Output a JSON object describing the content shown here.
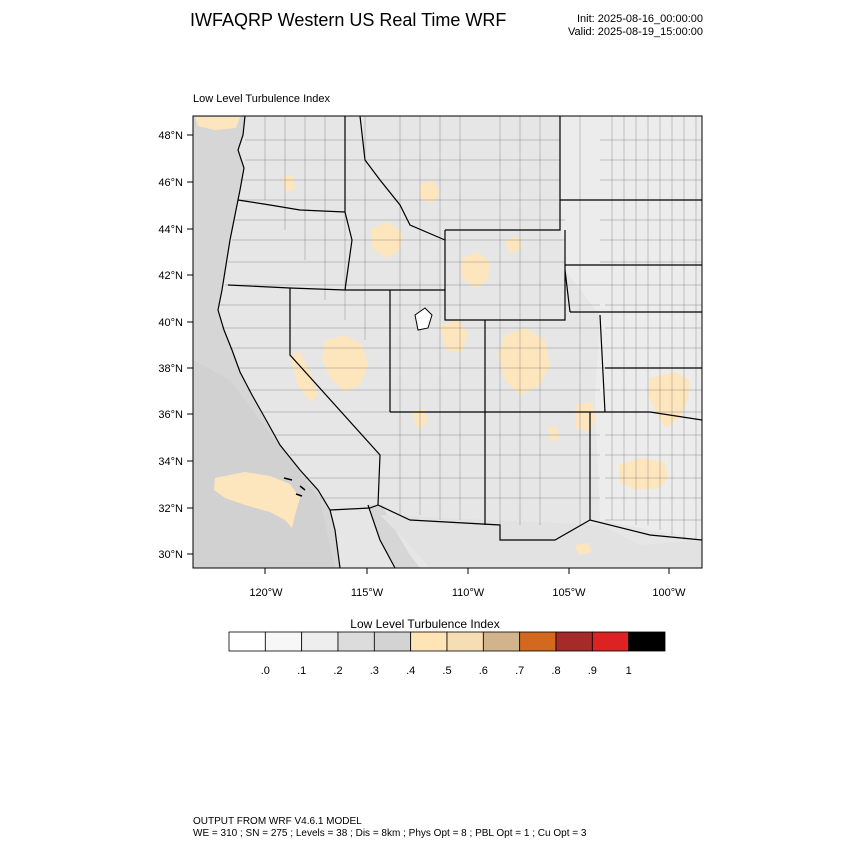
{
  "header": {
    "title": "IWFAQRP Western US Real Time WRF",
    "init": "Init: 2025-08-16_00:00:00",
    "valid": "Valid: 2025-08-19_15:00:00"
  },
  "map": {
    "subtitle": "Low Level Turbulence Index",
    "lat_ticks": [
      "48°N",
      "46°N",
      "44°N",
      "42°N",
      "40°N",
      "38°N",
      "36°N",
      "34°N",
      "32°N",
      "30°N"
    ],
    "lon_ticks": [
      "120°W",
      "115°W",
      "110°W",
      "105°W",
      "100°W"
    ],
    "colors": {
      "land": "#e8e8e8",
      "ocean": "#dcdcdc",
      "low_turbulence": "#fde6be",
      "boundary": "#000000"
    }
  },
  "colorbar": {
    "title": "Low Level Turbulence Index",
    "colors": [
      "#ffffff",
      "#f7f7f7",
      "#eeeeee",
      "#dcdcdc",
      "#d3d3d3",
      "#ffe4b5",
      "#f5deb3",
      "#d2b48c",
      "#d2691e",
      "#a52a2a",
      "#dc2222",
      "#000000"
    ],
    "labels": [
      ".0",
      ".1",
      ".2",
      ".3",
      ".4",
      ".5",
      ".6",
      ".7",
      ".8",
      ".9",
      "1"
    ]
  },
  "footer": {
    "line1": "OUTPUT FROM WRF V4.6.1 MODEL",
    "line2": "WE = 310 ; SN = 275 ; Levels = 38 ; Dis = 8km ; Phys Opt = 8 ; PBL Opt = 1 ; Cu Opt = 3"
  }
}
